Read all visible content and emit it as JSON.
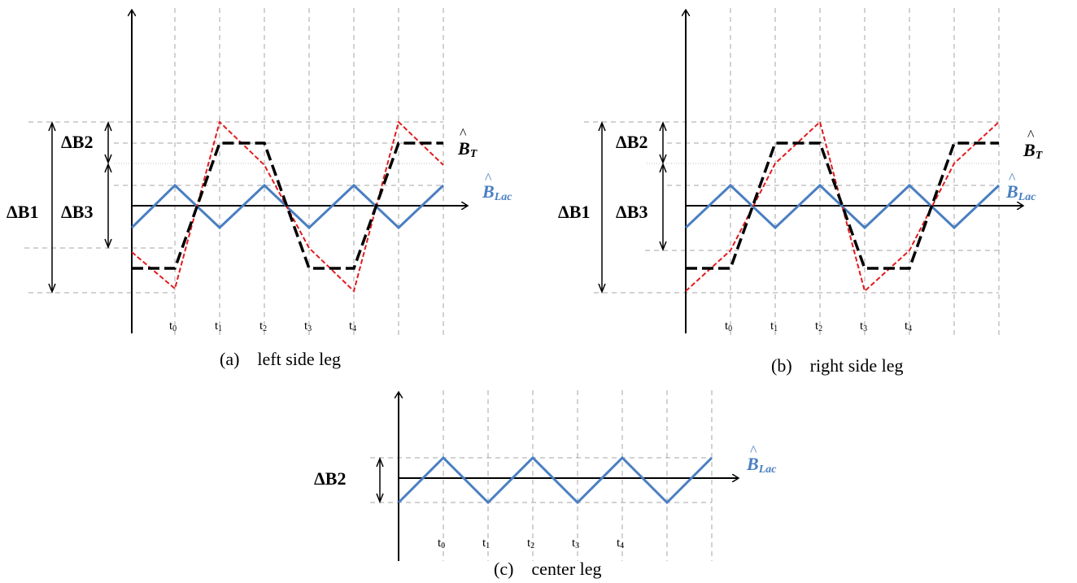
{
  "panels": [
    {
      "id": "a",
      "caption": "(a)    left side leg",
      "dimension_labels": [
        "ΔB2",
        "ΔB1",
        "ΔB3"
      ],
      "ticks": [
        {
          "base": "t",
          "sub": "0"
        },
        {
          "base": "t",
          "sub": "1"
        },
        {
          "base": "t",
          "sub": "2"
        },
        {
          "base": "t",
          "sub": "3"
        },
        {
          "base": "t",
          "sub": "4"
        }
      ],
      "symbols": [
        {
          "base": "B",
          "sub": "T",
          "color": "#000000"
        },
        {
          "base": "B",
          "sub": "Lac",
          "color": "#4a7fc1"
        }
      ]
    },
    {
      "id": "b",
      "caption": "(b)    right side leg",
      "dimension_labels": [
        "ΔB2",
        "ΔB1",
        "ΔB3"
      ],
      "ticks": [
        {
          "base": "t",
          "sub": "0"
        },
        {
          "base": "t",
          "sub": "1"
        },
        {
          "base": "t",
          "sub": "2"
        },
        {
          "base": "t",
          "sub": "3"
        },
        {
          "base": "t",
          "sub": "4"
        }
      ],
      "symbols": [
        {
          "base": "B",
          "sub": "T",
          "color": "#000000"
        },
        {
          "base": "B",
          "sub": "Lac",
          "color": "#4a7fc1"
        }
      ]
    },
    {
      "id": "c",
      "caption": "(c)    center leg",
      "dimension_labels": [
        "ΔB2"
      ],
      "ticks": [
        {
          "base": "t",
          "sub": "0"
        },
        {
          "base": "t",
          "sub": "1"
        },
        {
          "base": "t",
          "sub": "2"
        },
        {
          "base": "t",
          "sub": "3"
        },
        {
          "base": "t",
          "sub": "4"
        }
      ],
      "symbols": [
        {
          "base": "B",
          "sub": "Lac",
          "color": "#4a7fc1"
        }
      ]
    }
  ],
  "colors": {
    "flux_total": "#000000",
    "flux_ac": "#4a7fc1",
    "flux_red": "#e31a1c",
    "grid": "#a6a6a6"
  }
}
